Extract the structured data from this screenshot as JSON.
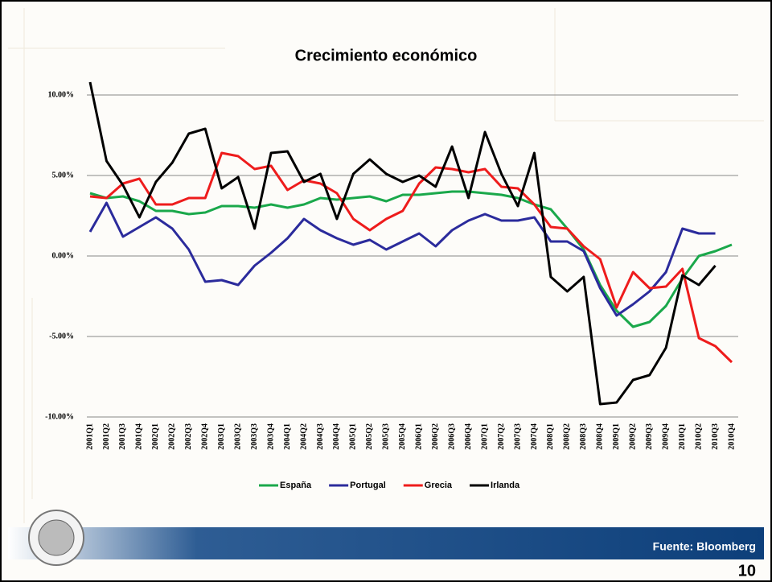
{
  "chart_data": {
    "type": "line",
    "title": "Crecimiento económico",
    "categories": [
      "2001Q1",
      "2001Q2",
      "2001Q3",
      "2001Q4",
      "2002Q1",
      "2002Q2",
      "2002Q3",
      "2002Q4",
      "2003Q1",
      "2003Q2",
      "2003Q3",
      "2003Q4",
      "2004Q1",
      "2004Q2",
      "2004Q3",
      "2004Q4",
      "2005Q1",
      "2005Q2",
      "2005Q3",
      "2005Q4",
      "2006Q1",
      "2006Q2",
      "2006Q3",
      "2006Q4",
      "2007Q1",
      "2007Q2",
      "2007Q3",
      "2007Q4",
      "2008Q1",
      "2008Q2",
      "2008Q3",
      "2008Q4",
      "2009Q1",
      "2009Q2",
      "2009Q3",
      "2009Q4",
      "2010Q1",
      "2010Q2",
      "2010Q3",
      "2010Q4"
    ],
    "series": [
      {
        "name": "España",
        "color": "#1aa84b",
        "values": [
          3.9,
          3.6,
          3.7,
          3.4,
          2.8,
          2.8,
          2.6,
          2.7,
          3.1,
          3.1,
          3.0,
          3.2,
          3.0,
          3.2,
          3.6,
          3.5,
          3.6,
          3.7,
          3.4,
          3.8,
          3.8,
          3.9,
          4.0,
          4.0,
          3.9,
          3.8,
          3.6,
          3.2,
          2.9,
          1.7,
          0.4,
          -1.8,
          -3.4,
          -4.4,
          -4.1,
          -3.1,
          -1.4,
          0.0,
          0.3,
          0.7
        ]
      },
      {
        "name": "Portugal",
        "color": "#2b2b9c",
        "values": [
          1.5,
          3.3,
          1.2,
          1.8,
          2.4,
          1.7,
          0.4,
          -1.6,
          -1.5,
          -1.8,
          -0.6,
          0.2,
          1.1,
          2.3,
          1.6,
          1.1,
          0.7,
          1.0,
          0.4,
          0.9,
          1.4,
          0.6,
          1.6,
          2.2,
          2.6,
          2.2,
          2.2,
          2.4,
          0.9,
          0.9,
          0.3,
          -2.0,
          -3.7,
          -3.0,
          -2.2,
          -1.0,
          1.7,
          1.4,
          1.4,
          null
        ]
      },
      {
        "name": "Grecia",
        "color": "#ee1c1c",
        "values": [
          3.7,
          3.6,
          4.5,
          4.8,
          3.2,
          3.2,
          3.6,
          3.6,
          6.4,
          6.2,
          5.4,
          5.6,
          4.1,
          4.7,
          4.5,
          3.9,
          2.3,
          1.6,
          2.3,
          2.8,
          4.5,
          5.5,
          5.4,
          5.2,
          5.4,
          4.3,
          4.2,
          3.2,
          1.8,
          1.7,
          0.6,
          -0.2,
          -3.2,
          -1.0,
          -2.0,
          -1.9,
          -0.8,
          -5.1,
          -5.6,
          -6.6
        ]
      },
      {
        "name": "Irlanda",
        "color": "#000000",
        "values": [
          10.8,
          5.9,
          4.4,
          2.4,
          4.6,
          5.8,
          7.6,
          7.9,
          4.2,
          4.9,
          1.7,
          6.4,
          6.5,
          4.6,
          5.1,
          2.3,
          5.1,
          6.0,
          5.1,
          4.6,
          5.0,
          4.3,
          6.8,
          3.6,
          7.7,
          5.1,
          3.1,
          6.4,
          -1.3,
          -2.2,
          -1.3,
          -9.2,
          -9.1,
          -7.7,
          -7.4,
          -5.7,
          -1.2,
          -1.8,
          -0.6,
          null
        ]
      }
    ],
    "ylim": [
      -10,
      10
    ],
    "yticks": [
      {
        "value": 10,
        "label": "10.00%"
      },
      {
        "value": 5,
        "label": "5.00%"
      },
      {
        "value": 0,
        "label": "0.00%"
      },
      {
        "value": -5,
        "label": "-5.00%"
      },
      {
        "value": -10,
        "label": "-10.00%"
      }
    ],
    "grid": true
  },
  "footer": {
    "source": "Fuente: Bloomberg",
    "page": "10"
  }
}
